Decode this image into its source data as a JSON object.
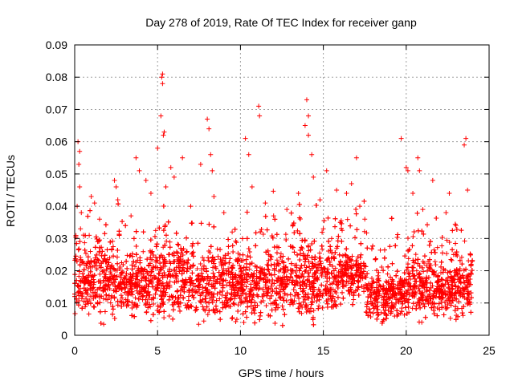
{
  "chart_data": {
    "type": "scatter",
    "title": "Day 278 of 2019, Rate Of TEC Index for receiver ganp",
    "xlabel": "GPS time / hours",
    "ylabel": "ROTI / TECUs",
    "xlim": [
      0,
      25
    ],
    "ylim": [
      0,
      0.09
    ],
    "xticks": [
      0,
      5,
      10,
      15,
      20,
      25
    ],
    "xtick_labels": [
      "0",
      "5",
      "10",
      "15",
      "20",
      "25"
    ],
    "yticks": [
      0,
      0.01,
      0.02,
      0.03,
      0.04,
      0.05,
      0.06,
      0.07,
      0.08,
      0.09
    ],
    "ytick_labels": [
      "0",
      "0.01",
      "0.02",
      "0.03",
      "0.04",
      "0.05",
      "0.06",
      "0.07",
      "0.08",
      "0.09"
    ],
    "grid": true,
    "marker": "plus",
    "color": "#ff0000",
    "series": [
      {
        "name": "ROTI",
        "points": [
          [
            0.2,
            0.06
          ],
          [
            0.3,
            0.057
          ],
          [
            0.25,
            0.053
          ],
          [
            0.3,
            0.046
          ],
          [
            0.15,
            0.04
          ],
          [
            0.4,
            0.038
          ],
          [
            0.35,
            0.033
          ],
          [
            1.0,
            0.043
          ],
          [
            1.2,
            0.041
          ],
          [
            1.5,
            0.036
          ],
          [
            2.4,
            0.048
          ],
          [
            2.5,
            0.046
          ],
          [
            2.6,
            0.042
          ],
          [
            3.4,
            0.037
          ],
          [
            3.7,
            0.055
          ],
          [
            3.9,
            0.051
          ],
          [
            4.3,
            0.048
          ],
          [
            4.6,
            0.044
          ],
          [
            5.0,
            0.058
          ],
          [
            5.2,
            0.068
          ],
          [
            5.25,
            0.08
          ],
          [
            5.3,
            0.081
          ],
          [
            5.3,
            0.078
          ],
          [
            5.35,
            0.062
          ],
          [
            5.4,
            0.063
          ],
          [
            5.5,
            0.046
          ],
          [
            5.8,
            0.052
          ],
          [
            6.0,
            0.049
          ],
          [
            6.5,
            0.055
          ],
          [
            7.0,
            0.04
          ],
          [
            7.6,
            0.053
          ],
          [
            8.0,
            0.067
          ],
          [
            8.1,
            0.064
          ],
          [
            8.2,
            0.056
          ],
          [
            8.3,
            0.051
          ],
          [
            8.4,
            0.043
          ],
          [
            9.0,
            0.038
          ],
          [
            9.5,
            0.032
          ],
          [
            10.3,
            0.061
          ],
          [
            10.5,
            0.056
          ],
          [
            10.7,
            0.046
          ],
          [
            11.1,
            0.071
          ],
          [
            11.15,
            0.068
          ],
          [
            11.5,
            0.041
          ],
          [
            12.0,
            0.037
          ],
          [
            12.8,
            0.039
          ],
          [
            13.5,
            0.044
          ],
          [
            13.9,
            0.065
          ],
          [
            14.0,
            0.073
          ],
          [
            14.1,
            0.068
          ],
          [
            14.1,
            0.062
          ],
          [
            14.3,
            0.056
          ],
          [
            14.4,
            0.049
          ],
          [
            14.8,
            0.042
          ],
          [
            15.0,
            0.033
          ],
          [
            15.2,
            0.051
          ],
          [
            15.5,
            0.03
          ],
          [
            15.8,
            0.045
          ],
          [
            16.4,
            0.044
          ],
          [
            16.7,
            0.047
          ],
          [
            17.0,
            0.055
          ],
          [
            17.2,
            0.04
          ],
          [
            17.5,
            0.036
          ],
          [
            19.7,
            0.061
          ],
          [
            20.0,
            0.052
          ],
          [
            20.1,
            0.051
          ],
          [
            20.4,
            0.044
          ],
          [
            20.7,
            0.055
          ],
          [
            20.8,
            0.051
          ],
          [
            21.0,
            0.039
          ],
          [
            21.6,
            0.048
          ],
          [
            22.4,
            0.038
          ],
          [
            22.6,
            0.044
          ],
          [
            23.0,
            0.034
          ],
          [
            23.5,
            0.059
          ],
          [
            23.6,
            0.061
          ],
          [
            23.7,
            0.045
          ]
        ]
      }
    ]
  }
}
